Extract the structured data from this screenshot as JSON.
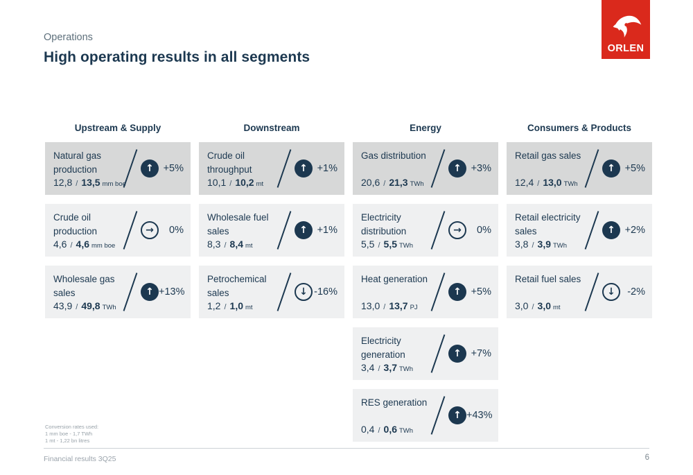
{
  "meta": {
    "eyebrow": "Operations",
    "title": "High operating results in all segments"
  },
  "logo": {
    "text": "ORLEN",
    "icon": "orlen-eagle-icon",
    "red": "#da291c"
  },
  "icons": {
    "up": "↑",
    "flat": "→",
    "down": "↓"
  },
  "colors": {
    "navy": "#1c3850",
    "card_background": "#eff0f1",
    "card_highlight_background": "#d7d8d8",
    "brand_red": "#da291c"
  },
  "columns": [
    {
      "header": "Upstream & Supply",
      "cards": [
        {
          "label": "Natural gas production",
          "old": "12,8",
          "new": "13,5",
          "unit": "mm boe",
          "direction": "up",
          "change": "+5%",
          "highlight": true
        },
        {
          "label": "Crude oil production",
          "old": "4,6",
          "new": "4,6",
          "unit": "mm boe",
          "direction": "flat",
          "change": "0%",
          "highlight": false
        },
        {
          "label": "Wholesale gas sales",
          "old": "43,9",
          "new": "49,8",
          "unit": "TWh",
          "direction": "up",
          "change": "+13%",
          "highlight": false
        }
      ]
    },
    {
      "header": "Downstream",
      "cards": [
        {
          "label": "Crude oil throughput",
          "old": "10,1",
          "new": "10,2",
          "unit": "mt",
          "direction": "up",
          "change": "+1%",
          "highlight": true
        },
        {
          "label": "Wholesale fuel sales",
          "old": "8,3",
          "new": "8,4",
          "unit": "mt",
          "direction": "up",
          "change": "+1%",
          "highlight": false
        },
        {
          "label": "Petrochemical sales",
          "old": "1,2",
          "new": "1,0",
          "unit": "mt",
          "direction": "down",
          "change": "-16%",
          "highlight": false
        }
      ]
    },
    {
      "header": "Energy",
      "cards": [
        {
          "label": "Gas distribution",
          "old": "20,6",
          "new": "21,3",
          "unit": "TWh",
          "direction": "up",
          "change": "+3%",
          "highlight": true
        },
        {
          "label": "Electricity distribution",
          "old": "5,5",
          "new": "5,5",
          "unit": "TWh",
          "direction": "flat",
          "change": "0%",
          "highlight": false
        },
        {
          "label": "Heat generation",
          "old": "13,0",
          "new": "13,7",
          "unit": "PJ",
          "direction": "up",
          "change": "+5%",
          "highlight": false
        },
        {
          "label": "Electricity generation",
          "old": "3,4",
          "new": "3,7",
          "unit": "TWh",
          "direction": "up",
          "change": "+7%",
          "highlight": false
        },
        {
          "label": "RES generation",
          "old": "0,4",
          "new": "0,6",
          "unit": "TWh",
          "direction": "up",
          "change": "+43%",
          "highlight": false
        }
      ]
    },
    {
      "header": "Consumers & Products",
      "cards": [
        {
          "label": "Retail gas sales",
          "old": "12,4",
          "new": "13,0",
          "unit": "TWh",
          "direction": "up",
          "change": "+5%",
          "highlight": true
        },
        {
          "label": "Retail electricity sales",
          "old": "3,8",
          "new": "3,9",
          "unit": "TWh",
          "direction": "up",
          "change": "+2%",
          "highlight": false
        },
        {
          "label": "Retail fuel sales",
          "old": "3,0",
          "new": "3,0",
          "unit": "mt",
          "direction": "down",
          "change": "-2%",
          "highlight": false
        }
      ]
    }
  ],
  "notes": [
    "Conversion rates used:",
    "1 mm boe - 1,7 TWh",
    "1 mt -  1,22 bn litres"
  ],
  "footer": {
    "left": "Financial results 3Q25",
    "page_number": "6"
  }
}
